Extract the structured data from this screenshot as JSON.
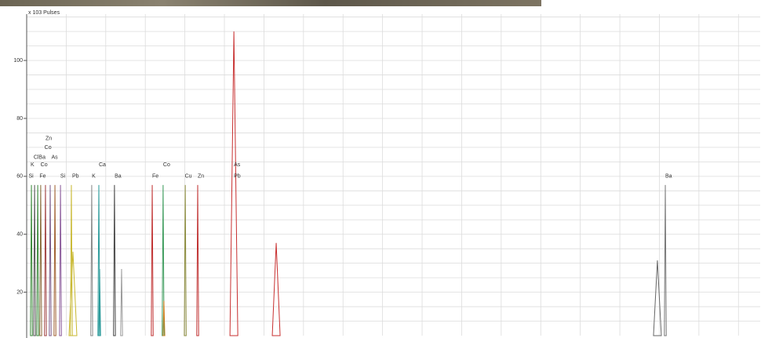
{
  "chart_data": {
    "type": "spectrum",
    "y_label": "x 103 Pulses",
    "xlim": [
      0,
      37.1
    ],
    "xticks": [
      0,
      2,
      4,
      6,
      8,
      10,
      12,
      14,
      16,
      18,
      20,
      22,
      24,
      26,
      28,
      30,
      32,
      34,
      36
    ],
    "ylim": [
      5,
      116
    ],
    "yticks": [
      20,
      40,
      60,
      80,
      100
    ],
    "ygrid": [
      10,
      15,
      20,
      25,
      30,
      35,
      40,
      45,
      50,
      55,
      60,
      65,
      70,
      75,
      80,
      85,
      90,
      95,
      100,
      105,
      110,
      115
    ],
    "grid": true,
    "peaks": [
      {
        "x": 0.24,
        "y": 57,
        "color": "#3a8a3a"
      },
      {
        "x": 0.4,
        "y": 57,
        "color": "#555555"
      },
      {
        "x": 0.56,
        "y": 57,
        "color": "#3a8a3a"
      },
      {
        "x": 0.71,
        "y": 57,
        "color": "#8a6a3a"
      },
      {
        "x": 0.95,
        "y": 57,
        "color": "#a04040"
      },
      {
        "x": 1.19,
        "y": 57,
        "color": "#7a5a8a"
      },
      {
        "x": 1.43,
        "y": 57,
        "color": "#a06030"
      },
      {
        "x": 1.71,
        "y": 57,
        "color": "#8a5a9a"
      },
      {
        "x": 2.26,
        "y": 57,
        "color": "#c8b830"
      },
      {
        "x": 2.34,
        "y": 34,
        "color": "#c8b830"
      },
      {
        "x": 3.29,
        "y": 57,
        "color": "#888888"
      },
      {
        "x": 3.65,
        "y": 57,
        "color": "#2a9a9a"
      },
      {
        "x": 3.69,
        "y": 28,
        "color": "#2a9a9a"
      },
      {
        "x": 4.44,
        "y": 57,
        "color": "#444444"
      },
      {
        "x": 4.8,
        "y": 28,
        "color": "#999999"
      },
      {
        "x": 6.35,
        "y": 57,
        "color": "#c03030"
      },
      {
        "x": 6.9,
        "y": 57,
        "color": "#3a9a5a"
      },
      {
        "x": 6.94,
        "y": 17,
        "color": "#d08020"
      },
      {
        "x": 8.02,
        "y": 57,
        "color": "#8a8a3a"
      },
      {
        "x": 8.65,
        "y": 57,
        "color": "#c03030"
      },
      {
        "x": 10.48,
        "y": 110,
        "color": "#c83030"
      },
      {
        "x": 12.62,
        "y": 37,
        "color": "#c83030"
      },
      {
        "x": 31.9,
        "y": 31,
        "color": "#666666"
      },
      {
        "x": 32.3,
        "y": 57,
        "color": "#777777"
      }
    ],
    "annotations": [
      {
        "text": "Si",
        "x": 0.1,
        "y": 60
      },
      {
        "text": "Fe",
        "x": 0.65,
        "y": 60
      },
      {
        "text": "Si",
        "x": 1.7,
        "y": 60
      },
      {
        "text": "Pb",
        "x": 2.3,
        "y": 60
      },
      {
        "text": "K",
        "x": 3.3,
        "y": 60
      },
      {
        "text": "Ba",
        "x": 4.45,
        "y": 60
      },
      {
        "text": "Fe",
        "x": 6.35,
        "y": 60
      },
      {
        "text": "Cu",
        "x": 8.0,
        "y": 60
      },
      {
        "text": "Zn",
        "x": 8.65,
        "y": 60
      },
      {
        "text": "Pb",
        "x": 10.48,
        "y": 60
      },
      {
        "text": "Ba",
        "x": 32.3,
        "y": 60
      },
      {
        "text": "K",
        "x": 0.2,
        "y": 64
      },
      {
        "text": "Co",
        "x": 0.7,
        "y": 64
      },
      {
        "text": "ClBa",
        "x": 0.35,
        "y": 66.5
      },
      {
        "text": "As",
        "x": 1.25,
        "y": 66.5
      },
      {
        "text": "Co",
        "x": 0.9,
        "y": 70
      },
      {
        "text": "Zn",
        "x": 0.95,
        "y": 73
      },
      {
        "text": "Ca",
        "x": 3.65,
        "y": 64
      },
      {
        "text": "Co",
        "x": 6.9,
        "y": 64
      },
      {
        "text": "As",
        "x": 10.48,
        "y": 64
      }
    ]
  }
}
